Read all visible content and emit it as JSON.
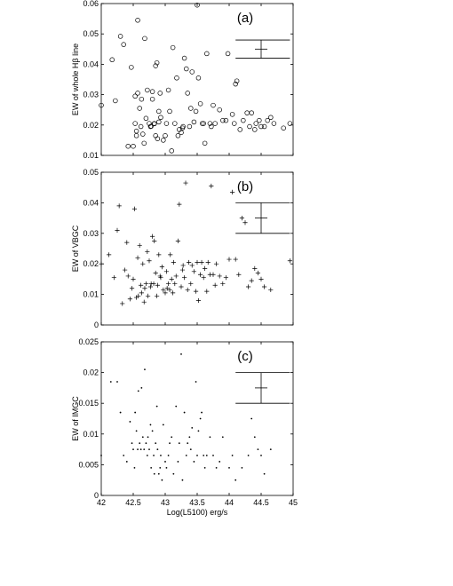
{
  "chart_data": [
    {
      "type": "scatter",
      "panel_label": "(a)",
      "ylabel_parts": [
        "EW of whole H",
        "β",
        " line"
      ],
      "xlim": [
        42,
        45
      ],
      "ylim": [
        0.01,
        0.06
      ],
      "yticks": [
        "0.01",
        "0.02",
        "0.03",
        "0.04",
        "0.05",
        "0.06"
      ],
      "marker": "circle",
      "error_bar": {
        "x": 44.5,
        "y": 0.045,
        "low": 0.042,
        "high": 0.048
      },
      "series": [
        {
          "x": [
            42.0,
            42.17,
            42.22,
            42.3,
            42.35,
            42.42,
            42.47,
            42.5,
            42.53,
            42.53,
            42.55,
            42.55,
            42.57,
            42.57,
            42.6,
            42.62,
            42.63,
            42.65,
            42.67,
            42.68,
            42.7,
            42.72,
            42.75,
            42.77,
            42.78,
            42.8,
            42.8,
            42.83,
            42.83,
            42.85,
            42.85,
            42.87,
            42.88,
            42.9,
            42.9,
            42.92,
            42.93,
            42.97,
            43.0,
            43.02,
            43.05,
            43.07,
            43.1,
            43.12,
            43.15,
            43.18,
            43.2,
            43.22,
            43.25,
            43.27,
            43.28,
            43.3,
            43.33,
            43.35,
            43.38,
            43.4,
            43.42,
            43.45,
            43.48,
            43.5,
            43.52,
            43.55,
            43.58,
            43.6,
            43.62,
            43.65,
            43.7,
            43.72,
            43.75,
            43.78,
            43.85,
            43.9,
            43.95,
            43.98,
            44.05,
            44.08,
            44.1,
            44.12,
            44.17,
            44.22,
            44.28,
            44.32,
            44.35,
            44.4,
            44.42,
            44.47,
            44.5,
            44.55,
            44.6,
            44.65,
            44.7,
            44.85,
            44.95
          ],
          "y": [
            0.0265,
            0.0415,
            0.028,
            0.0492,
            0.0465,
            0.013,
            0.039,
            0.013,
            0.0205,
            0.0295,
            0.0165,
            0.018,
            0.0305,
            0.0545,
            0.0255,
            0.0195,
            0.0285,
            0.017,
            0.014,
            0.0485,
            0.0222,
            0.0315,
            0.0205,
            0.0195,
            0.0196,
            0.0285,
            0.031,
            0.0204,
            0.0205,
            0.0165,
            0.0395,
            0.0405,
            0.0155,
            0.021,
            0.0245,
            0.0305,
            0.0225,
            0.015,
            0.0165,
            0.0205,
            0.0315,
            0.0245,
            0.0115,
            0.0455,
            0.0205,
            0.0355,
            0.0165,
            0.0185,
            0.0175,
            0.019,
            0.0195,
            0.042,
            0.0385,
            0.0305,
            0.0195,
            0.0255,
            0.0375,
            0.021,
            0.0245,
            0.0595,
            0.0355,
            0.027,
            0.0205,
            0.0205,
            0.014,
            0.0435,
            0.0205,
            0.0195,
            0.0265,
            0.0205,
            0.025,
            0.0215,
            0.0215,
            0.0435,
            0.0235,
            0.0205,
            0.0335,
            0.0345,
            0.0185,
            0.0215,
            0.024,
            0.0195,
            0.024,
            0.0185,
            0.0205,
            0.0215,
            0.0195,
            0.0195,
            0.0215,
            0.0225,
            0.0205,
            0.019,
            0.0205
          ]
        }
      ]
    },
    {
      "type": "scatter",
      "panel_label": "(b)",
      "ylabel_parts": [
        "EW of VBGC"
      ],
      "xlim": [
        42,
        45
      ],
      "ylim": [
        0,
        0.05
      ],
      "yticks": [
        "0",
        "0.01",
        "0.02",
        "0.03",
        "0.04",
        "0.05"
      ],
      "marker": "plus",
      "error_bar": {
        "x": 44.5,
        "y": 0.035,
        "low": 0.03,
        "high": 0.04
      },
      "series": [
        {
          "x": [
            42.0,
            42.12,
            42.2,
            42.25,
            42.28,
            42.33,
            42.37,
            42.4,
            42.42,
            42.45,
            42.48,
            42.5,
            42.52,
            42.55,
            42.57,
            42.58,
            42.6,
            42.62,
            42.63,
            42.65,
            42.67,
            42.68,
            42.7,
            42.72,
            42.73,
            42.75,
            42.77,
            42.78,
            42.8,
            42.82,
            42.83,
            42.85,
            42.87,
            42.88,
            42.9,
            42.92,
            42.93,
            42.95,
            42.97,
            43.0,
            43.02,
            43.03,
            43.05,
            43.07,
            43.08,
            43.1,
            43.12,
            43.13,
            43.15,
            43.17,
            43.2,
            43.22,
            43.25,
            43.27,
            43.28,
            43.3,
            43.32,
            43.35,
            43.37,
            43.4,
            43.42,
            43.45,
            43.48,
            43.5,
            43.52,
            43.55,
            43.57,
            43.6,
            43.62,
            43.65,
            43.67,
            43.7,
            43.72,
            43.75,
            43.78,
            43.8,
            43.85,
            43.9,
            43.95,
            44.0,
            44.05,
            44.1,
            44.15,
            44.2,
            44.25,
            44.3,
            44.35,
            44.4,
            44.45,
            44.5,
            44.55,
            44.65,
            44.95
          ],
          "y": [
            0.02,
            0.023,
            0.0155,
            0.031,
            0.039,
            0.007,
            0.018,
            0.027,
            0.016,
            0.0085,
            0.012,
            0.015,
            0.038,
            0.009,
            0.022,
            0.0095,
            0.026,
            0.013,
            0.0105,
            0.02,
            0.0075,
            0.012,
            0.0135,
            0.024,
            0.0095,
            0.021,
            0.0125,
            0.0135,
            0.029,
            0.0135,
            0.0275,
            0.017,
            0.0095,
            0.013,
            0.023,
            0.016,
            0.0155,
            0.019,
            0.0115,
            0.0105,
            0.0175,
            0.012,
            0.0135,
            0.0115,
            0.023,
            0.015,
            0.0105,
            0.0205,
            0.0135,
            0.016,
            0.0275,
            0.0395,
            0.0125,
            0.018,
            0.0195,
            0.0155,
            0.0465,
            0.0115,
            0.0205,
            0.0135,
            0.0195,
            0.0175,
            0.011,
            0.0205,
            0.008,
            0.0165,
            0.0205,
            0.0155,
            0.0185,
            0.011,
            0.0205,
            0.0165,
            0.0455,
            0.0165,
            0.013,
            0.02,
            0.016,
            0.0135,
            0.0155,
            0.0215,
            0.0435,
            0.0215,
            0.0165,
            0.035,
            0.0335,
            0.0125,
            0.0145,
            0.0185,
            0.017,
            0.015,
            0.0125,
            0.0115,
            0.021
          ]
        }
      ]
    },
    {
      "type": "scatter",
      "panel_label": "(c)",
      "ylabel_parts": [
        "EW of IMGC"
      ],
      "xlabel": "Log(L5100) erg/s",
      "xlim": [
        42,
        45
      ],
      "ylim": [
        0,
        0.025
      ],
      "xticks": [
        "42",
        "42.5",
        "43",
        "43.5",
        "44",
        "44.5",
        "45"
      ],
      "yticks": [
        "0",
        "0.005",
        "0.01",
        "0.015",
        "0.02",
        "0.025"
      ],
      "marker": "dot",
      "error_bar": {
        "x": 44.5,
        "y": 0.0175,
        "low": 0.015,
        "high": 0.02
      },
      "series": [
        {
          "x": [
            42.0,
            42.15,
            42.25,
            42.3,
            42.35,
            42.4,
            42.45,
            42.48,
            42.5,
            42.52,
            42.53,
            42.55,
            42.57,
            42.58,
            42.6,
            42.62,
            42.63,
            42.65,
            42.67,
            42.68,
            42.7,
            42.72,
            42.73,
            42.75,
            42.77,
            42.78,
            42.8,
            42.82,
            42.83,
            42.85,
            42.87,
            42.88,
            42.9,
            42.92,
            42.93,
            42.95,
            42.97,
            43.0,
            43.02,
            43.05,
            43.07,
            43.1,
            43.13,
            43.17,
            43.2,
            43.22,
            43.25,
            43.27,
            43.3,
            43.33,
            43.35,
            43.38,
            43.4,
            43.42,
            43.45,
            43.48,
            43.5,
            43.52,
            43.55,
            43.57,
            43.6,
            43.62,
            43.65,
            43.7,
            43.75,
            43.8,
            43.85,
            43.9,
            44.0,
            44.05,
            44.1,
            44.2,
            44.3,
            44.35,
            44.4,
            44.45,
            44.5,
            44.55,
            44.65
          ],
          "y": [
            0.0065,
            0.0185,
            0.0185,
            0.0135,
            0.0065,
            0.0055,
            0.012,
            0.0085,
            0.0075,
            0.0045,
            0.0135,
            0.0105,
            0.0075,
            0.017,
            0.0085,
            0.0075,
            0.0175,
            0.0095,
            0.0075,
            0.0205,
            0.0085,
            0.0065,
            0.0095,
            0.0075,
            0.0115,
            0.0045,
            0.0105,
            0.0065,
            0.0035,
            0.0085,
            0.0145,
            0.0075,
            0.0035,
            0.0045,
            0.0065,
            0.0025,
            0.0115,
            0.0055,
            0.0045,
            0.0065,
            0.0085,
            0.0095,
            0.0035,
            0.0145,
            0.0055,
            0.0085,
            0.023,
            0.0025,
            0.0135,
            0.0065,
            0.0085,
            0.0095,
            0.0075,
            0.011,
            0.0055,
            0.0185,
            0.0065,
            0.0105,
            0.0125,
            0.0135,
            0.0065,
            0.0045,
            0.0065,
            0.0095,
            0.0065,
            0.0045,
            0.0055,
            0.0095,
            0.0045,
            0.0065,
            0.0025,
            0.0045,
            0.0065,
            0.0125,
            0.0095,
            0.0075,
            0.0065,
            0.0035,
            0.0075
          ]
        }
      ]
    }
  ]
}
